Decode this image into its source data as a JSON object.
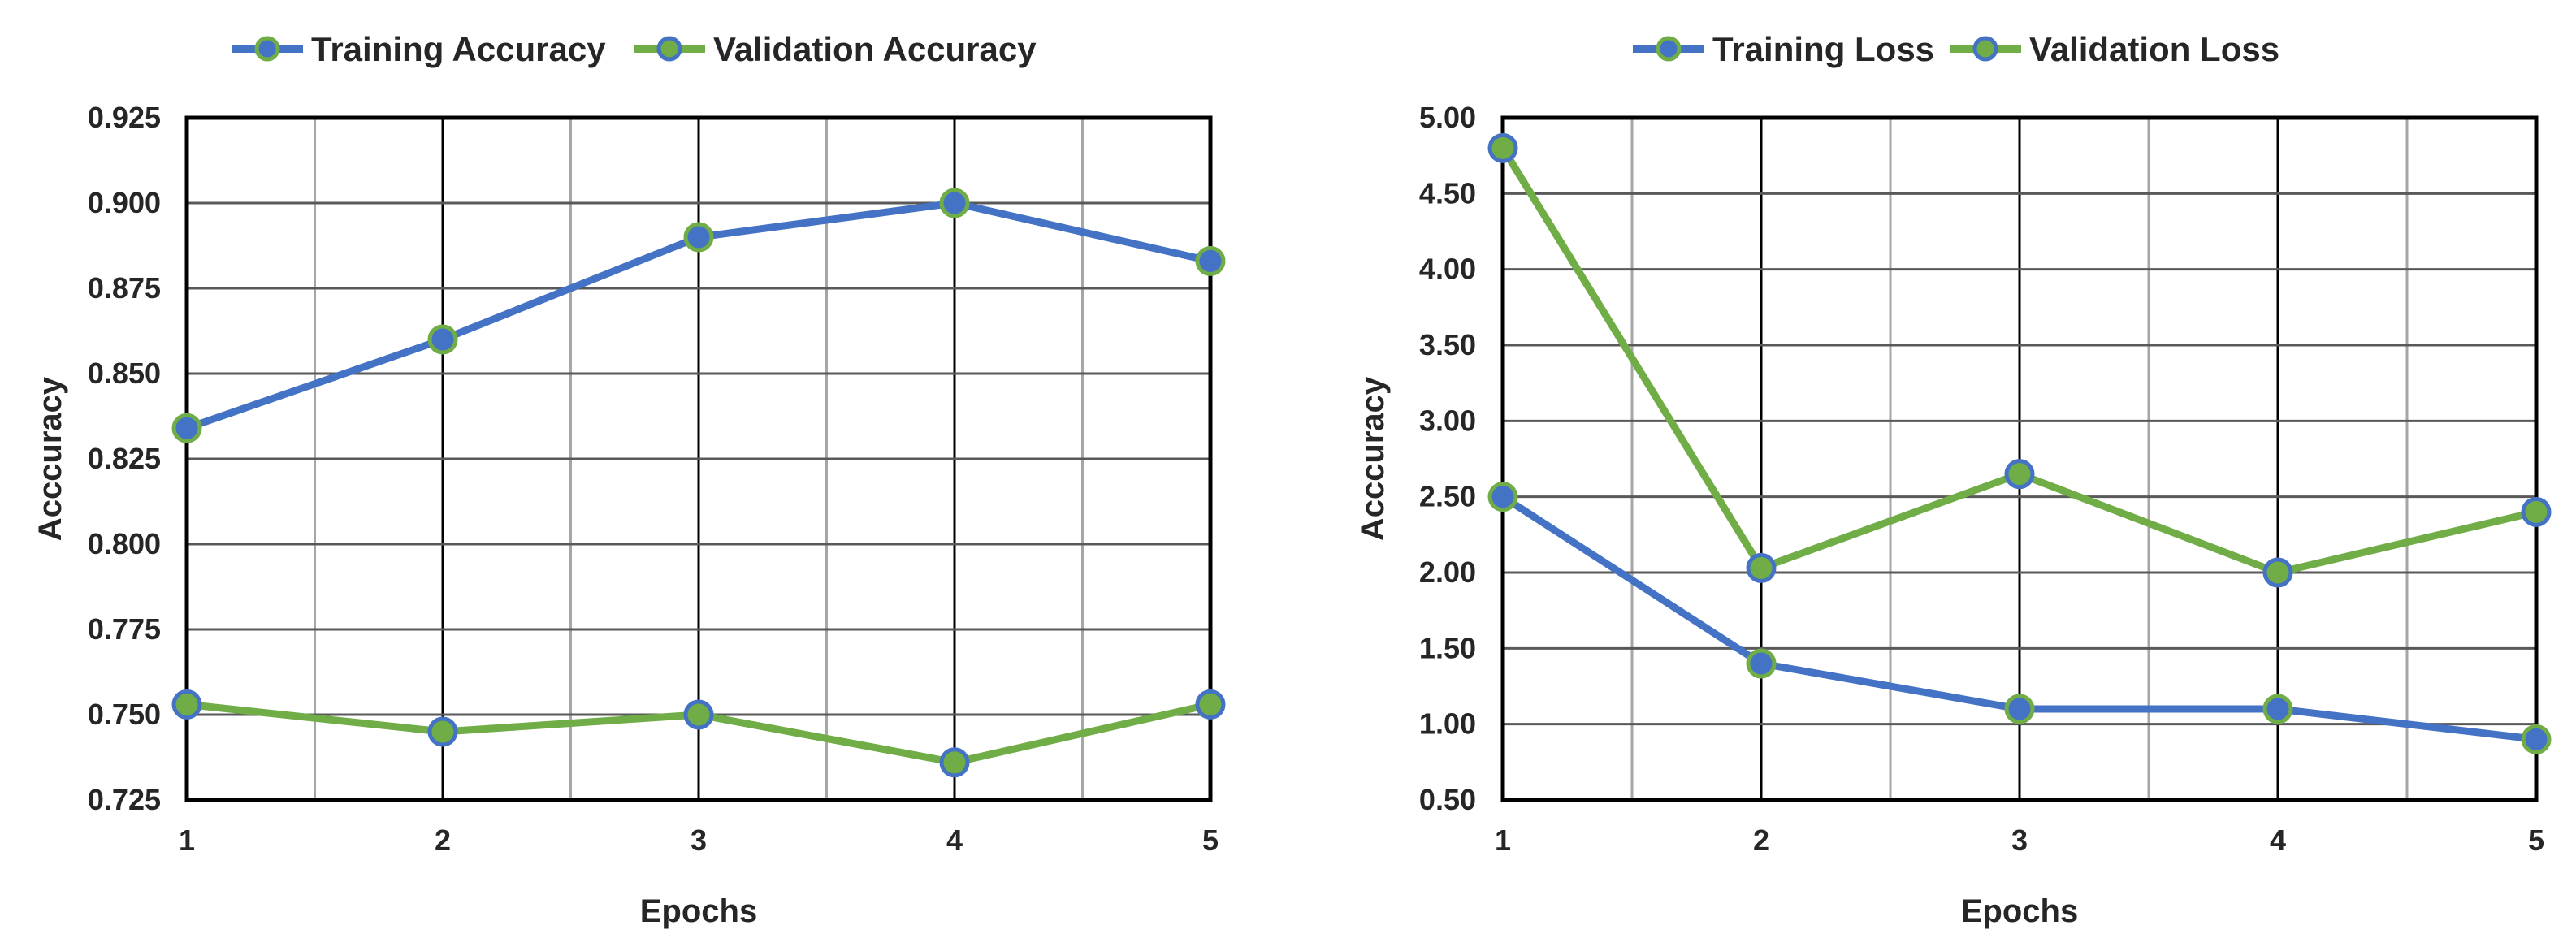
{
  "colors": {
    "training": "#4472C4",
    "validation": "#70AD47",
    "grid_major": "#000000",
    "grid_minor": "#A6A6A6"
  },
  "chart_data": [
    {
      "type": "line",
      "x": [
        1,
        2,
        3,
        4,
        5
      ],
      "xlabel": "Epochs",
      "ylabel": "Acccuracy",
      "ylim": [
        0.725,
        0.925
      ],
      "ystep": 0.025,
      "ydecimals": 3,
      "grid": true,
      "legend_position": "top",
      "series": [
        {
          "name": "Training Accuracy",
          "color_key": "training",
          "values": [
            0.834,
            0.86,
            0.89,
            0.9,
            0.883
          ]
        },
        {
          "name": "Validation Accuracy",
          "color_key": "validation",
          "values": [
            0.753,
            0.745,
            0.75,
            0.736,
            0.753
          ]
        }
      ]
    },
    {
      "type": "line",
      "x": [
        1,
        2,
        3,
        4,
        5
      ],
      "xlabel": "Epochs",
      "ylabel": "Acccuracy",
      "ylim": [
        0.5,
        5.0
      ],
      "ystep": 0.5,
      "ydecimals": 2,
      "grid": true,
      "legend_position": "top",
      "series": [
        {
          "name": "Training Loss",
          "color_key": "training",
          "values": [
            2.5,
            1.4,
            1.1,
            1.1,
            0.9
          ]
        },
        {
          "name": "Validation Loss",
          "color_key": "validation",
          "values": [
            4.8,
            2.03,
            2.65,
            2.0,
            2.4
          ]
        }
      ]
    }
  ]
}
